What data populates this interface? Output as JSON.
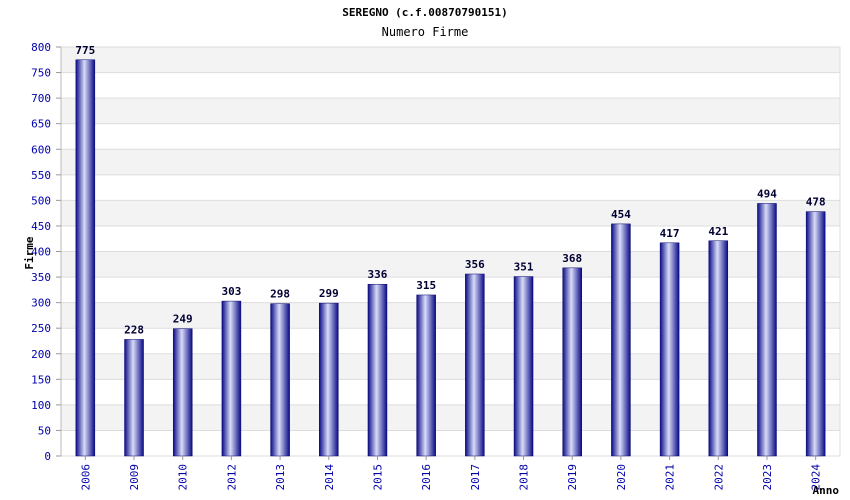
{
  "chart_data": {
    "type": "bar",
    "title": "SEREGNO (c.f.00870790151)",
    "subtitle": "Numero Firme",
    "xlabel": "Anno",
    "ylabel": "Firme",
    "categories": [
      "2006",
      "2009",
      "2010",
      "2012",
      "2013",
      "2014",
      "2015",
      "2016",
      "2017",
      "2018",
      "2019",
      "2020",
      "2021",
      "2022",
      "2023",
      "2024"
    ],
    "values": [
      775,
      228,
      249,
      303,
      298,
      299,
      336,
      315,
      356,
      351,
      368,
      454,
      417,
      421,
      494,
      478
    ],
    "ylim": [
      0,
      800
    ],
    "yticks": [
      0,
      50,
      100,
      150,
      200,
      250,
      300,
      350,
      400,
      450,
      500,
      550,
      600,
      650,
      700,
      750,
      800
    ],
    "grid": true,
    "colors": {
      "bar": "#1a1a9c",
      "bar_highlight": "#d8dcf8",
      "band": "#f3f3f3",
      "tick_text": "#0000aa"
    }
  }
}
